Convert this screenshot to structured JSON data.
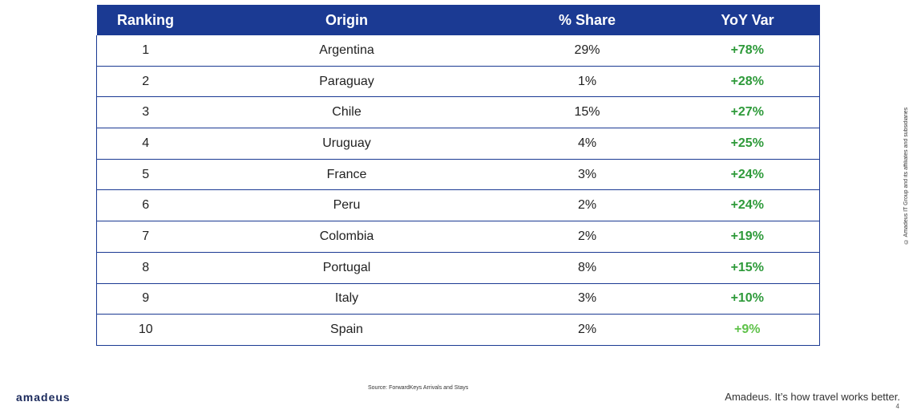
{
  "table": {
    "headers": [
      "Ranking",
      "Origin",
      "% Share",
      "YoY Var"
    ],
    "rows": [
      {
        "rank": "1",
        "origin": "Argentina",
        "share": "29%",
        "yoy": "+78%"
      },
      {
        "rank": "2",
        "origin": "Paraguay",
        "share": "1%",
        "yoy": "+28%"
      },
      {
        "rank": "3",
        "origin": "Chile",
        "share": "15%",
        "yoy": "+27%"
      },
      {
        "rank": "4",
        "origin": "Uruguay",
        "share": "4%",
        "yoy": "+25%"
      },
      {
        "rank": "5",
        "origin": "France",
        "share": "3%",
        "yoy": "+24%"
      },
      {
        "rank": "6",
        "origin": "Peru",
        "share": "2%",
        "yoy": "+24%"
      },
      {
        "rank": "7",
        "origin": "Colombia",
        "share": "2%",
        "yoy": "+19%"
      },
      {
        "rank": "8",
        "origin": "Portugal",
        "share": "8%",
        "yoy": "+15%"
      },
      {
        "rank": "9",
        "origin": "Italy",
        "share": "3%",
        "yoy": "+10%"
      },
      {
        "rank": "10",
        "origin": "Spain",
        "share": "2%",
        "yoy": "+9%"
      }
    ]
  },
  "colors": {
    "header_bg": "#1b3a93",
    "positive_green": "#2e9a3a",
    "light_green": "#5fc24a"
  },
  "footer": {
    "source": "Source: ForwardKeys Arrivals and Stays",
    "logo": "amadeus",
    "tagline": "Amadeus. It’s how travel works better.",
    "page_number": "4"
  },
  "copyright": "© Amadeus IT Group and its affiliates and subsidiaries"
}
